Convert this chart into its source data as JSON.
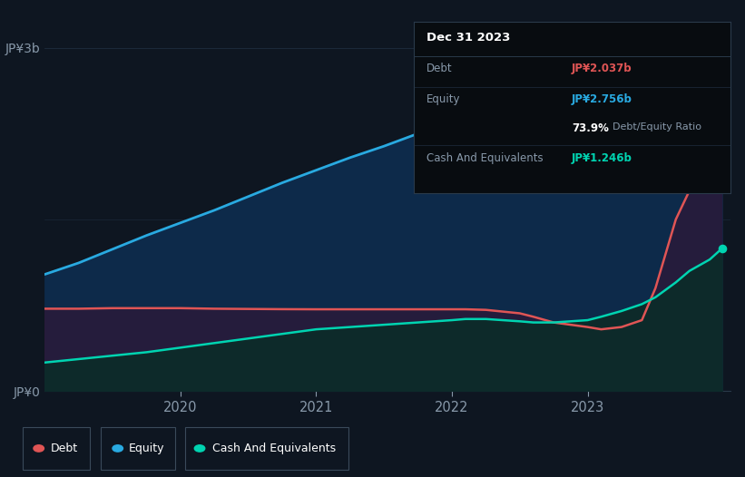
{
  "bg_color": "#0e1621",
  "plot_bg_color": "#0e1621",
  "debt_color": "#e05555",
  "equity_color": "#29aae1",
  "cash_color": "#00d4b1",
  "years_x": [
    2019.0,
    2019.25,
    2019.5,
    2019.75,
    2020.0,
    2020.25,
    2020.5,
    2020.75,
    2021.0,
    2021.25,
    2021.5,
    2021.75,
    2022.0,
    2022.1,
    2022.25,
    2022.5,
    2022.6,
    2022.75,
    2023.0,
    2023.1,
    2023.25,
    2023.4,
    2023.5,
    2023.65,
    2023.75,
    2023.9,
    2023.99
  ],
  "equity": [
    1.02,
    1.12,
    1.24,
    1.36,
    1.47,
    1.58,
    1.7,
    1.82,
    1.93,
    2.04,
    2.14,
    2.25,
    2.35,
    2.38,
    2.41,
    2.45,
    2.47,
    2.5,
    2.54,
    2.57,
    2.6,
    2.63,
    2.66,
    2.69,
    2.71,
    2.74,
    2.756
  ],
  "debt": [
    0.72,
    0.72,
    0.725,
    0.725,
    0.725,
    0.72,
    0.718,
    0.716,
    0.715,
    0.715,
    0.715,
    0.715,
    0.715,
    0.715,
    0.71,
    0.68,
    0.65,
    0.6,
    0.56,
    0.54,
    0.56,
    0.62,
    0.9,
    1.5,
    1.75,
    1.95,
    2.037
  ],
  "cash": [
    0.25,
    0.28,
    0.31,
    0.34,
    0.38,
    0.42,
    0.46,
    0.5,
    0.54,
    0.56,
    0.58,
    0.6,
    0.62,
    0.63,
    0.63,
    0.61,
    0.6,
    0.6,
    0.62,
    0.65,
    0.7,
    0.76,
    0.82,
    0.95,
    1.05,
    1.15,
    1.246
  ],
  "ylim": [
    0,
    3.0
  ],
  "xlim": [
    2019.0,
    2024.05
  ],
  "yticks": [
    0,
    3.0
  ],
  "ytick_labels": [
    "JP¥0",
    "JP¥3b"
  ],
  "xticks": [
    2020,
    2021,
    2022,
    2023
  ],
  "xtick_labels": [
    "2020",
    "2021",
    "2022",
    "2023"
  ],
  "legend_items": [
    {
      "label": "Debt",
      "color": "#e05555"
    },
    {
      "label": "Equity",
      "color": "#29aae1"
    },
    {
      "label": "Cash And Equivalents",
      "color": "#00d4b1"
    }
  ],
  "tooltip": {
    "title": "Dec 31 2023",
    "rows": [
      {
        "label": "Debt",
        "value": "JP¥2.037b",
        "value_color": "#e05555"
      },
      {
        "label": "Equity",
        "value": "JP¥2.756b",
        "value_color": "#29aae1"
      },
      {
        "label": "",
        "value": "73.9% Debt/Equity Ratio",
        "value_color": null
      },
      {
        "label": "Cash And Equivalents",
        "value": "JP¥1.246b",
        "value_color": "#00d4b1"
      }
    ]
  },
  "text_color": "#8899aa",
  "grid_color": "#1e2d3e",
  "axis_line_color": "#2a3a4a"
}
